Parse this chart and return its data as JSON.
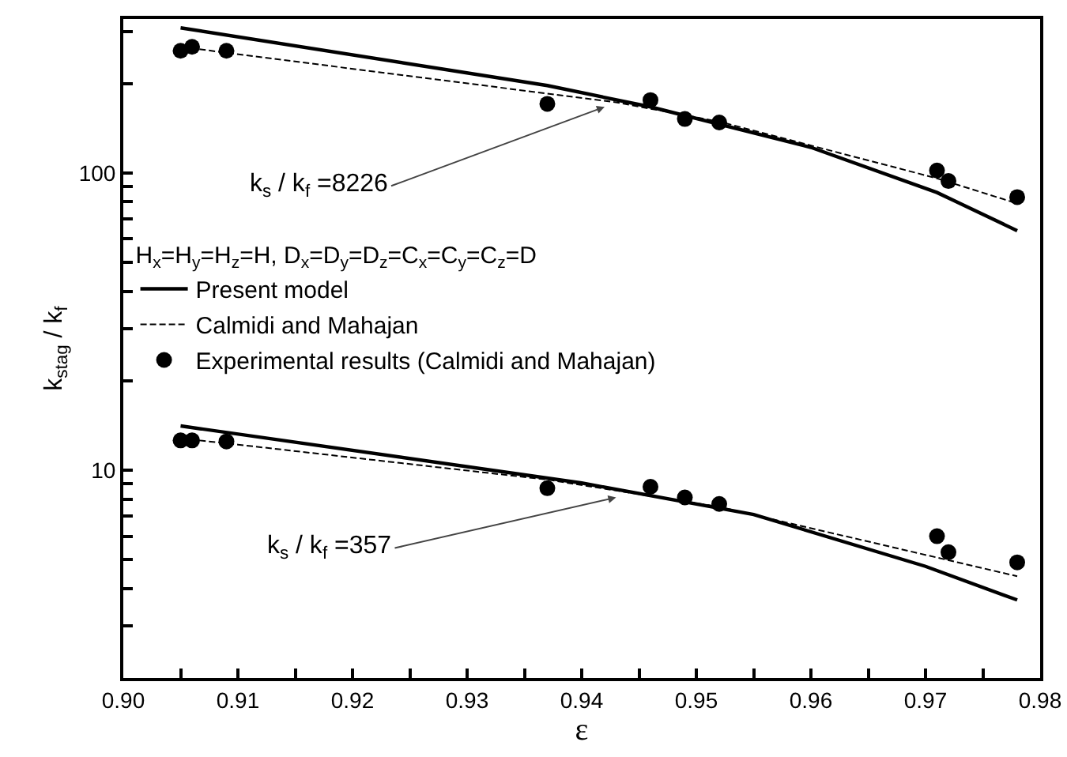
{
  "chart_data": {
    "type": "line",
    "xlabel": "ε",
    "ylabel": "k$_{stag}$ / k$_{f}$",
    "legend_title": "H$_{x}$=H$_{y}$=H$_{z}$=H, D$_{x}$=D$_{y}$=D$_{z}$=C$_{x}$=C$_{y}$=C$_{z}$=D",
    "log": true,
    "grid": false,
    "legend": "left",
    "xlim": [
      0.9,
      0.98
    ],
    "ylim": [
      2,
      330
    ],
    "xticks": [
      {
        "value": 0.9,
        "label": "0.90"
      },
      {
        "value": 0.905,
        "label": null
      },
      {
        "value": 0.91,
        "label": "0.91"
      },
      {
        "value": 0.915,
        "label": null
      },
      {
        "value": 0.92,
        "label": "0.92"
      },
      {
        "value": 0.925,
        "label": null
      },
      {
        "value": 0.93,
        "label": "0.93"
      },
      {
        "value": 0.935,
        "label": null
      },
      {
        "value": 0.94,
        "label": "0.94"
      },
      {
        "value": 0.945,
        "label": null
      },
      {
        "value": 0.95,
        "label": "0.95"
      },
      {
        "value": 0.955,
        "label": null
      },
      {
        "value": 0.96,
        "label": "0.96"
      },
      {
        "value": 0.965,
        "label": null
      },
      {
        "value": 0.97,
        "label": "0.97"
      },
      {
        "value": 0.975,
        "label": null
      },
      {
        "value": 0.98,
        "label": "0.98"
      }
    ],
    "yticks": [
      {
        "value": 2,
        "label": null
      },
      {
        "value": 3,
        "label": null
      },
      {
        "value": 4,
        "label": null
      },
      {
        "value": 5,
        "label": null
      },
      {
        "value": 6,
        "label": null
      },
      {
        "value": 7,
        "label": null
      },
      {
        "value": 8,
        "label": null
      },
      {
        "value": 9,
        "label": null
      },
      10,
      {
        "value": 20,
        "label": null
      },
      {
        "value": 30,
        "label": null
      },
      {
        "value": 40,
        "label": null
      },
      {
        "value": 50,
        "label": null
      },
      {
        "value": 60,
        "label": null
      },
      {
        "value": 70,
        "label": null
      },
      {
        "value": 80,
        "label": null
      },
      {
        "value": 90,
        "label": null
      },
      100,
      {
        "value": 200,
        "label": null
      },
      {
        "value": 300,
        "label": null
      }
    ],
    "series": [
      {
        "name": "Present model",
        "line_style": "solid",
        "marker": "none",
        "color": "#000000",
        "x": [
          0.905,
          0.937,
          0.946,
          0.96,
          0.971,
          0.978
        ],
        "values": [
          308,
          197,
          167,
          122,
          86,
          64
        ]
      },
      {
        "line_style": "solid",
        "marker": "none",
        "color": "#000000",
        "x": [
          0.905,
          0.94,
          0.955,
          0.97,
          0.978
        ],
        "values": [
          14.1,
          9.06,
          7.1,
          4.75,
          3.66
        ]
      },
      {
        "name": "Calmidi and Mahajan",
        "line_style": "dashed",
        "marker": "none",
        "color": "#000000",
        "x": [
          0.905,
          0.909,
          0.943,
          0.952,
          0.971,
          0.978
        ],
        "values": [
          266,
          254,
          173,
          149,
          96,
          79
        ]
      },
      {
        "line_style": "dashed",
        "marker": "none",
        "color": "#000000",
        "x": [
          0.905,
          0.91,
          0.937,
          0.952,
          0.978
        ],
        "values": [
          12.8,
          12.2,
          9.3,
          7.53,
          4.4
        ]
      },
      {
        "name": "Experimental results (Calmidi and Mahajan)",
        "type": "scatter",
        "marker": "circle",
        "color": "#000000",
        "x": [
          0.905,
          0.906,
          0.909,
          0.937,
          0.946,
          0.949,
          0.952,
          0.971,
          0.972,
          0.978,
          0.905,
          0.906,
          0.909,
          0.937,
          0.946,
          0.949,
          0.952,
          0.971,
          0.972,
          0.978
        ],
        "values": [
          258,
          266,
          258,
          171,
          176,
          152,
          148,
          102,
          94,
          83,
          12.6,
          12.6,
          12.5,
          8.7,
          8.8,
          8.1,
          7.7,
          6.0,
          5.3,
          4.9
        ]
      }
    ],
    "annotations": [
      {
        "text": "k$_{s}$ / k$_{f}$ =8226",
        "x": 0.942,
        "y": 167
      },
      {
        "text": "k$_{s}$ / k$_{f}$ =357",
        "x": 0.943,
        "y": 8.1
      }
    ]
  }
}
